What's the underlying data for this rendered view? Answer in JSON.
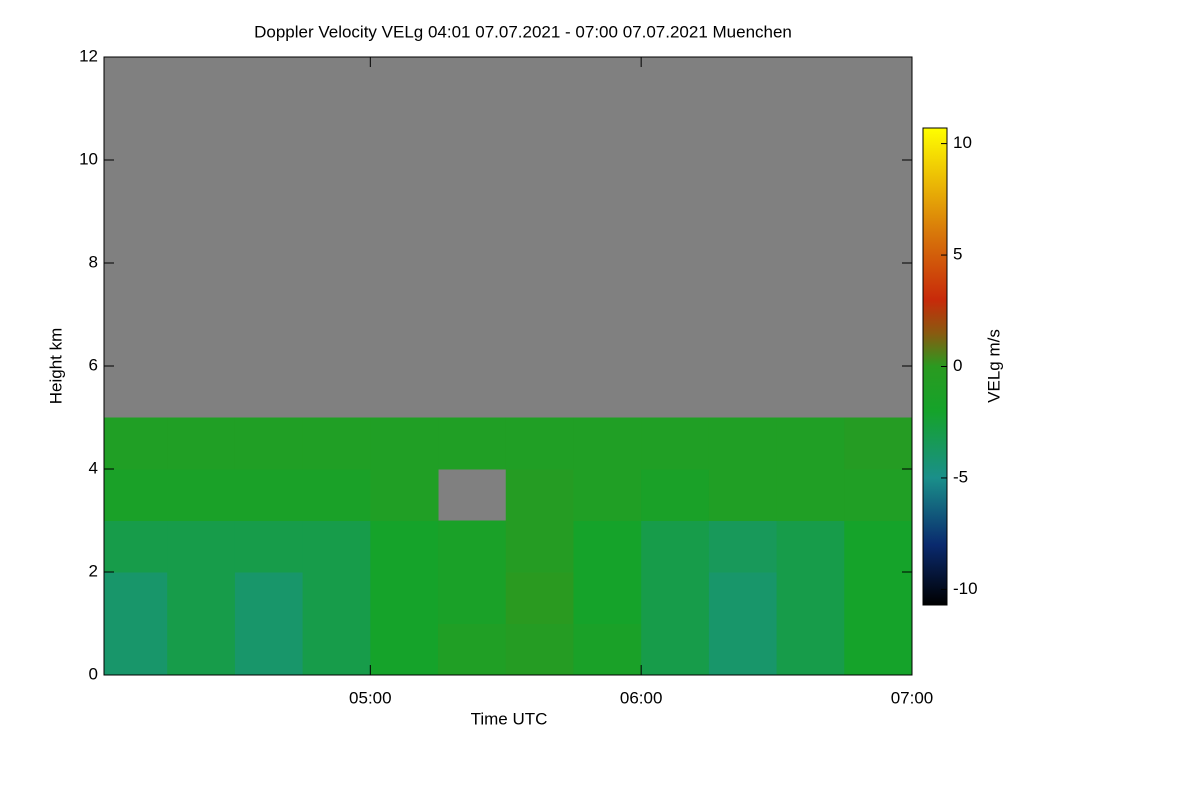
{
  "chart_data": {
    "type": "heatmap",
    "title": "Doppler Velocity VELg   04:01 07.07.2021 - 07:00 07.07.2021 Muenchen",
    "x_label": "Time UTC",
    "y_label": "Height km",
    "colorbar_label": "VELg m/s",
    "x": [
      4.0167,
      4.25,
      4.5,
      4.75,
      5.0,
      5.25,
      5.5,
      5.75,
      6.0,
      6.25,
      6.5,
      6.75,
      7.0
    ],
    "y": [
      0,
      1,
      2,
      3,
      4,
      5,
      6,
      7,
      8,
      9,
      10,
      11,
      12
    ],
    "values": [
      [
        -4,
        -3,
        -4,
        -3,
        -2,
        -1,
        -0.5,
        -1.5,
        -3,
        -4,
        -3,
        -2
      ],
      [
        -4,
        -3,
        -4,
        -3,
        -2,
        -1.5,
        0,
        -2,
        -3,
        -4,
        -3,
        -2
      ],
      [
        -3,
        -3,
        -3,
        -3,
        -2,
        -1.5,
        -0.5,
        -2,
        -3,
        -3.5,
        -3,
        -2
      ],
      [
        -1.5,
        -1.5,
        -1.5,
        -1.5,
        -1,
        null,
        -0.5,
        -1,
        -1.5,
        -1,
        -1,
        -1
      ],
      [
        -1,
        -1,
        -1,
        -1,
        -1,
        -1,
        -1,
        -1,
        -1,
        -1,
        -1,
        -0.5
      ],
      [
        null,
        null,
        null,
        null,
        null,
        null,
        null,
        null,
        null,
        null,
        null,
        null
      ],
      [
        null,
        null,
        null,
        null,
        null,
        null,
        null,
        null,
        null,
        null,
        null,
        null
      ],
      [
        null,
        null,
        null,
        null,
        null,
        null,
        null,
        null,
        null,
        null,
        null,
        null
      ],
      [
        null,
        null,
        null,
        null,
        null,
        null,
        null,
        null,
        null,
        null,
        null,
        null
      ],
      [
        null,
        null,
        null,
        null,
        null,
        null,
        null,
        null,
        null,
        null,
        null,
        null
      ],
      [
        null,
        null,
        null,
        null,
        null,
        null,
        null,
        null,
        null,
        null,
        null,
        null
      ],
      [
        null,
        null,
        null,
        null,
        null,
        null,
        null,
        null,
        null,
        null,
        null,
        null
      ]
    ],
    "xlim": [
      4.0167,
      7.0
    ],
    "xticks": [
      {
        "value": 5,
        "label": "05:00"
      },
      {
        "value": 6,
        "label": "06:00"
      },
      {
        "value": 7,
        "label": "07:00"
      }
    ],
    "ylim": [
      0,
      12
    ],
    "yticks": [
      0,
      2,
      4,
      6,
      8,
      10,
      12
    ],
    "zlim": [
      -10.7,
      10.7
    ],
    "zticks": [
      10,
      5,
      0,
      -5,
      -10
    ],
    "missing_color": "#808080",
    "colorscale": [
      [
        -10.7,
        "#000000"
      ],
      [
        -8,
        "#0a2a6e"
      ],
      [
        -5,
        "#1a8f8a"
      ],
      [
        -2,
        "#15a32a"
      ],
      [
        0,
        "#2a9a20"
      ],
      [
        1.5,
        "#8a5a10"
      ],
      [
        3,
        "#c82a0a"
      ],
      [
        6,
        "#d8780a"
      ],
      [
        10.7,
        "#ffff00"
      ]
    ]
  }
}
